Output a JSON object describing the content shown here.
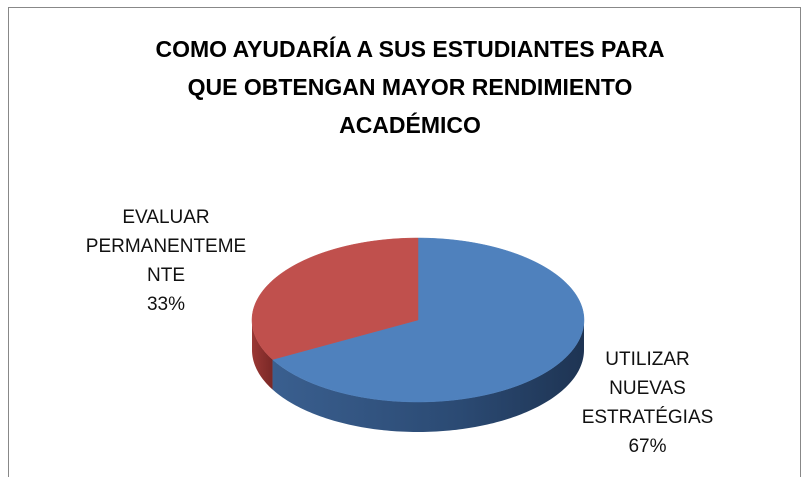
{
  "chart_data": {
    "type": "pie",
    "title": "COMO AYUDARÍA A SUS ESTUDIANTES PARA QUE OBTENGAN MAYOR RENDIMIENTO ACADÉMICO",
    "categories": [
      "UTILIZAR NUEVAS ESTRATÉGIAS",
      "EVALUAR PERMANENTEMENTE"
    ],
    "values": [
      67,
      33
    ],
    "value_labels": [
      "67%",
      "33%"
    ],
    "colors": [
      "#4f81bd",
      "#c0504d"
    ]
  }
}
